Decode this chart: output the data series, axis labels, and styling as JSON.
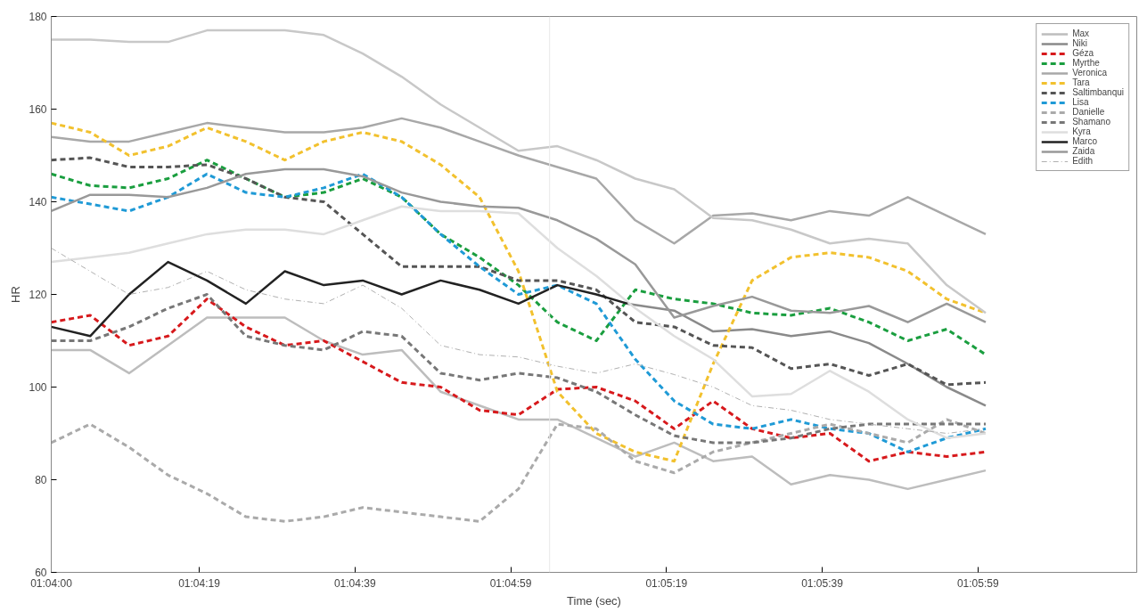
{
  "chart_data": {
    "type": "line",
    "xlabel": "Time (sec)",
    "ylabel": "HR",
    "x": [
      1.066667,
      1.068056,
      1.069444,
      1.070833,
      1.072222,
      1.073611,
      1.075,
      1.076389,
      1.077778,
      1.079167,
      1.080556,
      1.081944,
      1.083333,
      1.084722,
      1.086111,
      1.0875,
      1.088889,
      1.090278,
      1.091667,
      1.093056,
      1.094444,
      1.095833,
      1.097222,
      1.098611,
      1.1
    ],
    "xlim": [
      1.066667,
      1.105389
    ],
    "ylim": [
      60,
      180
    ],
    "xticks": [
      {
        "value": 1.066667,
        "label": "01:04:00"
      },
      {
        "value": 1.071944,
        "label": "01:04:19"
      },
      {
        "value": 1.0775,
        "label": "01:04:39"
      },
      {
        "value": 1.083056,
        "label": "01:04:59"
      },
      {
        "value": 1.088611,
        "label": "01:05:19"
      },
      {
        "value": 1.094167,
        "label": "01:05:39"
      },
      {
        "value": 1.099722,
        "label": "01:05:59"
      }
    ],
    "yticks": [
      60,
      80,
      100,
      120,
      140,
      160,
      180
    ],
    "grid": false,
    "legend": "top right",
    "ref_lines": [
      {
        "axis": "x",
        "value": 1.084444,
        "label": null,
        "color": "#e8e8e8"
      }
    ],
    "series": [
      {
        "name": "Max",
        "color": "#bdbdbd",
        "line_style": "solid",
        "values": [
          108,
          108,
          103,
          109,
          115,
          115,
          115,
          110,
          107,
          108,
          99,
          96,
          93,
          93,
          89,
          85,
          88,
          84,
          85,
          79,
          81,
          80,
          78,
          80,
          82
        ]
      },
      {
        "name": "Niki",
        "color": "#8a8a8a",
        "line_style": "solid",
        "x": [
          1.087222,
          1.088889,
          1.090278,
          1.091667,
          1.093056,
          1.094444,
          1.095833,
          1.097222,
          1.098611,
          1.1
        ],
        "values": [
          118,
          116.5,
          112,
          112.5,
          111,
          112,
          109.5,
          105,
          100,
          96
        ]
      },
      {
        "name": "Géza",
        "color": "#d7191c",
        "line_style": "dashed",
        "values": [
          114,
          115.5,
          109,
          111,
          119,
          113,
          109,
          110,
          105.5,
          101,
          100,
          95,
          94,
          99.5,
          100,
          97,
          91,
          97,
          91,
          89,
          90,
          84,
          86,
          85,
          86
        ]
      },
      {
        "name": "Myrthe",
        "color": "#1a9e3f",
        "line_style": "dashed",
        "values": [
          146,
          143.5,
          143,
          145,
          149,
          145,
          141,
          142,
          145,
          141,
          133,
          128,
          122,
          114,
          110,
          121,
          119,
          118,
          116,
          115.5,
          117,
          114,
          110,
          112.5,
          107
        ]
      },
      {
        "name": "Veronica",
        "color": "#a8a8a8",
        "line_style": "solid",
        "values": [
          154,
          153,
          153,
          155,
          157,
          156,
          155,
          155,
          156,
          158,
          156,
          153,
          150,
          147.5,
          145,
          136,
          131,
          137,
          137.5,
          136,
          138,
          137,
          141,
          137,
          133
        ]
      },
      {
        "name": "Tara",
        "color": "#f2c12e",
        "line_style": "dashed",
        "values": [
          157,
          155,
          150,
          152,
          156,
          153,
          149,
          153,
          155,
          153,
          148,
          141,
          125,
          99,
          90,
          86,
          84,
          105,
          123,
          128,
          129,
          128,
          125,
          119,
          116
        ]
      },
      {
        "name": "Saltimbanqui",
        "color": "#555555",
        "line_style": "dashed",
        "values": [
          149,
          149.5,
          147.5,
          147.5,
          148,
          145,
          141,
          140,
          133,
          126,
          126,
          126,
          123,
          123,
          121,
          114,
          113,
          109,
          108.5,
          104,
          105,
          102.5,
          105,
          100.5,
          101
        ]
      },
      {
        "name": "Lisa",
        "color": "#1f9ad6",
        "line_style": "dashed",
        "values": [
          141,
          139.5,
          138,
          141,
          146,
          142,
          141,
          143,
          146,
          141,
          133,
          126,
          120,
          122,
          118,
          106,
          97,
          92,
          91,
          93,
          91,
          90,
          86,
          89,
          91
        ]
      },
      {
        "name": "Danielle",
        "color": "#aaaaaa",
        "line_style": "dashed",
        "values": [
          88,
          92,
          87,
          81,
          77,
          72,
          71,
          72,
          74,
          73,
          72,
          71,
          78,
          92,
          91,
          84,
          81.5,
          86,
          88,
          90,
          92,
          90,
          88,
          93,
          90
        ]
      },
      {
        "name": "Shamano",
        "color": "#777777",
        "line_style": "dashed",
        "values": [
          110,
          110,
          113,
          117,
          120,
          111,
          109,
          108,
          112,
          111,
          103,
          101.5,
          103,
          102,
          99,
          94,
          89.5,
          88,
          88,
          89,
          91,
          92,
          92,
          92,
          92
        ]
      },
      {
        "name": "Kyra",
        "color": "#dedede",
        "line_style": "solid",
        "values": [
          127,
          128,
          129,
          131,
          133,
          134,
          134,
          133,
          136,
          139,
          138,
          138,
          137.5,
          130,
          124,
          117,
          111,
          106,
          98,
          98.5,
          103.5,
          99,
          93,
          89,
          90
        ]
      },
      {
        "name": "Marco",
        "color": "#222222",
        "line_style": "solid",
        "x": [
          1.066667,
          1.068056,
          1.069444,
          1.070833,
          1.072222,
          1.073611,
          1.075,
          1.076389,
          1.077778,
          1.079167,
          1.080556,
          1.081944,
          1.083333,
          1.084722,
          1.086111,
          1.087222
        ],
        "values": [
          113,
          111,
          120,
          127,
          123,
          118,
          125,
          122,
          123,
          120,
          123,
          121,
          118,
          122,
          120,
          118
        ]
      },
      {
        "name": "Zaida",
        "color": "#999999",
        "line_style": "solid",
        "values": [
          138,
          141.5,
          141.5,
          141,
          143,
          146,
          147,
          147,
          145.5,
          142,
          140,
          139,
          138.7,
          136,
          132,
          126.5,
          115,
          117.5,
          119.5,
          116.5,
          116,
          117.5,
          114,
          118,
          114
        ]
      },
      {
        "name": "Edith",
        "color": "#b0b0b0",
        "line_style": "dashdot",
        "values": [
          130,
          125,
          120,
          121.5,
          125,
          121,
          119,
          118,
          122,
          117,
          109,
          107,
          106.5,
          104.5,
          103,
          105,
          102.7,
          100,
          96,
          95,
          93,
          92,
          91,
          90,
          91
        ]
      },
      {
        "color": "#c8c8c8",
        "line_style": "solid",
        "values": [
          175,
          175,
          174.5,
          174.5,
          177,
          177,
          177,
          176,
          172,
          167,
          161,
          156,
          151,
          152,
          149,
          145,
          142.7,
          136.5,
          136,
          134,
          131,
          132,
          131,
          122,
          116
        ]
      }
    ]
  }
}
